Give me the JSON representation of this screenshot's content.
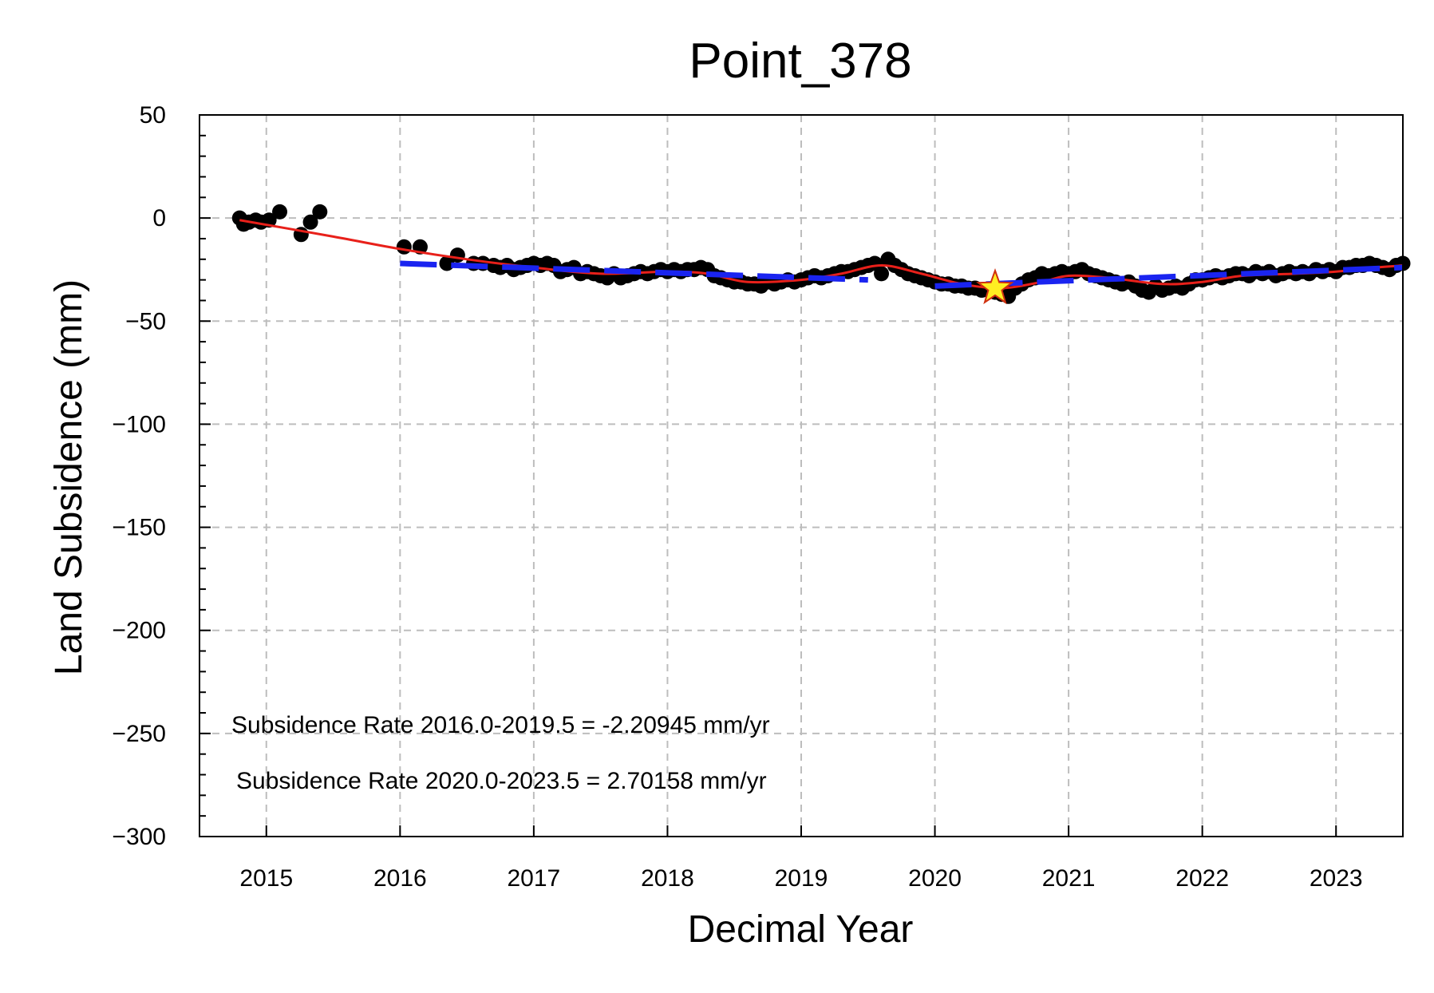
{
  "chart_data": {
    "type": "scatter",
    "title": "Point_378",
    "xlabel": "Decimal Year",
    "ylabel": "Land Subsidence (mm)",
    "xlim": [
      2014.5,
      2023.5
    ],
    "ylim": [
      -300,
      50
    ],
    "x_ticks": [
      2015,
      2016,
      2017,
      2018,
      2019,
      2020,
      2021,
      2022,
      2023
    ],
    "x_tick_labels": [
      "2015",
      "2016",
      "2017",
      "2018",
      "2019",
      "2020",
      "2021",
      "2022",
      "2023"
    ],
    "y_ticks": [
      50,
      0,
      -50,
      -100,
      -150,
      -200,
      -250,
      -300
    ],
    "y_tick_labels": [
      "50",
      "0",
      "−50",
      "−100",
      "−150",
      "−200",
      "−250",
      "−300"
    ],
    "grid": true,
    "annotations": [
      "Subsidence Rate 2016.0-2019.5 = -2.20945 mm/yr",
      "Subsidence Rate 2020.0-2023.5 = 2.70158 mm/yr"
    ],
    "series": [
      {
        "kind": "scatter",
        "color": "#000000",
        "points": [
          [
            2014.8,
            0
          ],
          [
            2014.83,
            -3
          ],
          [
            2014.87,
            -2
          ],
          [
            2014.92,
            -1
          ],
          [
            2014.96,
            -2
          ],
          [
            2015.02,
            -1
          ],
          [
            2015.1,
            3
          ],
          [
            2015.26,
            -8
          ],
          [
            2015.33,
            -2
          ],
          [
            2015.4,
            3
          ],
          [
            2016.03,
            -14
          ],
          [
            2016.15,
            -14
          ],
          [
            2016.35,
            -22
          ],
          [
            2016.43,
            -18
          ],
          [
            2016.55,
            -22
          ],
          [
            2016.62,
            -22
          ],
          [
            2016.7,
            -23
          ],
          [
            2016.75,
            -24
          ],
          [
            2016.8,
            -23
          ],
          [
            2016.85,
            -25
          ],
          [
            2016.9,
            -24
          ],
          [
            2016.95,
            -23
          ],
          [
            2017.0,
            -22
          ],
          [
            2017.05,
            -23
          ],
          [
            2017.1,
            -22
          ],
          [
            2017.15,
            -23
          ],
          [
            2017.2,
            -26
          ],
          [
            2017.25,
            -25
          ],
          [
            2017.3,
            -24
          ],
          [
            2017.35,
            -27
          ],
          [
            2017.4,
            -26
          ],
          [
            2017.45,
            -27
          ],
          [
            2017.5,
            -28
          ],
          [
            2017.55,
            -29
          ],
          [
            2017.6,
            -27
          ],
          [
            2017.65,
            -29
          ],
          [
            2017.7,
            -28
          ],
          [
            2017.75,
            -27
          ],
          [
            2017.8,
            -26
          ],
          [
            2017.85,
            -27
          ],
          [
            2017.9,
            -26
          ],
          [
            2017.95,
            -25
          ],
          [
            2018.0,
            -26
          ],
          [
            2018.05,
            -25
          ],
          [
            2018.1,
            -26
          ],
          [
            2018.15,
            -25
          ],
          [
            2018.2,
            -25
          ],
          [
            2018.25,
            -24
          ],
          [
            2018.3,
            -25
          ],
          [
            2018.35,
            -28
          ],
          [
            2018.4,
            -29
          ],
          [
            2018.45,
            -30
          ],
          [
            2018.5,
            -31
          ],
          [
            2018.55,
            -31
          ],
          [
            2018.6,
            -32
          ],
          [
            2018.65,
            -32
          ],
          [
            2018.7,
            -33
          ],
          [
            2018.75,
            -31
          ],
          [
            2018.8,
            -32
          ],
          [
            2018.85,
            -31
          ],
          [
            2018.9,
            -30
          ],
          [
            2018.95,
            -31
          ],
          [
            2019.0,
            -30
          ],
          [
            2019.05,
            -29
          ],
          [
            2019.1,
            -28
          ],
          [
            2019.15,
            -29
          ],
          [
            2019.2,
            -28
          ],
          [
            2019.25,
            -27
          ],
          [
            2019.3,
            -26
          ],
          [
            2019.35,
            -26
          ],
          [
            2019.4,
            -25
          ],
          [
            2019.45,
            -24
          ],
          [
            2019.5,
            -23
          ],
          [
            2019.55,
            -22
          ],
          [
            2019.6,
            -27
          ],
          [
            2019.65,
            -20
          ],
          [
            2019.7,
            -23
          ],
          [
            2019.75,
            -25
          ],
          [
            2019.8,
            -27
          ],
          [
            2019.85,
            -28
          ],
          [
            2019.9,
            -29
          ],
          [
            2019.95,
            -30
          ],
          [
            2020.0,
            -31
          ],
          [
            2020.05,
            -32
          ],
          [
            2020.1,
            -32
          ],
          [
            2020.15,
            -33
          ],
          [
            2020.2,
            -33
          ],
          [
            2020.25,
            -34
          ],
          [
            2020.3,
            -34
          ],
          [
            2020.35,
            -35
          ],
          [
            2020.4,
            -35
          ],
          [
            2020.45,
            -36
          ],
          [
            2020.5,
            -37
          ],
          [
            2020.55,
            -38
          ],
          [
            2020.6,
            -34
          ],
          [
            2020.65,
            -32
          ],
          [
            2020.7,
            -30
          ],
          [
            2020.75,
            -29
          ],
          [
            2020.8,
            -27
          ],
          [
            2020.85,
            -28
          ],
          [
            2020.9,
            -27
          ],
          [
            2020.95,
            -26
          ],
          [
            2021.0,
            -27
          ],
          [
            2021.05,
            -26
          ],
          [
            2021.1,
            -25
          ],
          [
            2021.15,
            -27
          ],
          [
            2021.2,
            -28
          ],
          [
            2021.25,
            -29
          ],
          [
            2021.3,
            -30
          ],
          [
            2021.35,
            -31
          ],
          [
            2021.4,
            -32
          ],
          [
            2021.45,
            -31
          ],
          [
            2021.5,
            -33
          ],
          [
            2021.55,
            -35
          ],
          [
            2021.6,
            -36
          ],
          [
            2021.65,
            -33
          ],
          [
            2021.7,
            -35
          ],
          [
            2021.75,
            -34
          ],
          [
            2021.8,
            -33
          ],
          [
            2021.85,
            -34
          ],
          [
            2021.9,
            -32
          ],
          [
            2021.95,
            -30
          ],
          [
            2022.0,
            -30
          ],
          [
            2022.05,
            -29
          ],
          [
            2022.1,
            -28
          ],
          [
            2022.15,
            -29
          ],
          [
            2022.2,
            -28
          ],
          [
            2022.25,
            -27
          ],
          [
            2022.3,
            -27
          ],
          [
            2022.35,
            -28
          ],
          [
            2022.4,
            -26
          ],
          [
            2022.45,
            -27
          ],
          [
            2022.5,
            -26
          ],
          [
            2022.55,
            -28
          ],
          [
            2022.6,
            -27
          ],
          [
            2022.65,
            -26
          ],
          [
            2022.7,
            -27
          ],
          [
            2022.75,
            -26
          ],
          [
            2022.8,
            -27
          ],
          [
            2022.85,
            -25
          ],
          [
            2022.9,
            -26
          ],
          [
            2022.95,
            -25
          ],
          [
            2023.0,
            -26
          ],
          [
            2023.05,
            -24
          ],
          [
            2023.1,
            -24
          ],
          [
            2023.15,
            -23
          ],
          [
            2023.2,
            -23
          ],
          [
            2023.25,
            -22
          ],
          [
            2023.3,
            -23
          ],
          [
            2023.35,
            -24
          ],
          [
            2023.4,
            -25
          ],
          [
            2023.45,
            -23
          ],
          [
            2023.5,
            -22
          ]
        ]
      },
      {
        "kind": "line",
        "style": "smooth",
        "color": "#e8201a",
        "points": [
          [
            2014.8,
            -1
          ],
          [
            2015.5,
            -9
          ],
          [
            2016.0,
            -15
          ],
          [
            2016.5,
            -20
          ],
          [
            2017.0,
            -24
          ],
          [
            2017.5,
            -27
          ],
          [
            2018.0,
            -26
          ],
          [
            2018.3,
            -27
          ],
          [
            2018.6,
            -31
          ],
          [
            2019.0,
            -30
          ],
          [
            2019.3,
            -27
          ],
          [
            2019.6,
            -23
          ],
          [
            2019.9,
            -27
          ],
          [
            2020.2,
            -32
          ],
          [
            2020.5,
            -34
          ],
          [
            2020.8,
            -31
          ],
          [
            2021.0,
            -28
          ],
          [
            2021.3,
            -29
          ],
          [
            2021.7,
            -32
          ],
          [
            2022.0,
            -31
          ],
          [
            2022.3,
            -28
          ],
          [
            2022.7,
            -27
          ],
          [
            2023.0,
            -26
          ],
          [
            2023.3,
            -24
          ],
          [
            2023.5,
            -23
          ]
        ]
      },
      {
        "kind": "line",
        "style": "dashed",
        "color": "#1a24f0",
        "points": [
          [
            2016.0,
            -22
          ],
          [
            2019.5,
            -30
          ]
        ]
      },
      {
        "kind": "line",
        "style": "dashed",
        "color": "#1a24f0",
        "points": [
          [
            2020.0,
            -33
          ],
          [
            2023.5,
            -24
          ]
        ]
      }
    ],
    "marker": {
      "shape": "star",
      "x": 2020.45,
      "y": -34,
      "fill": "#ffee22",
      "stroke": "#d03010"
    }
  }
}
